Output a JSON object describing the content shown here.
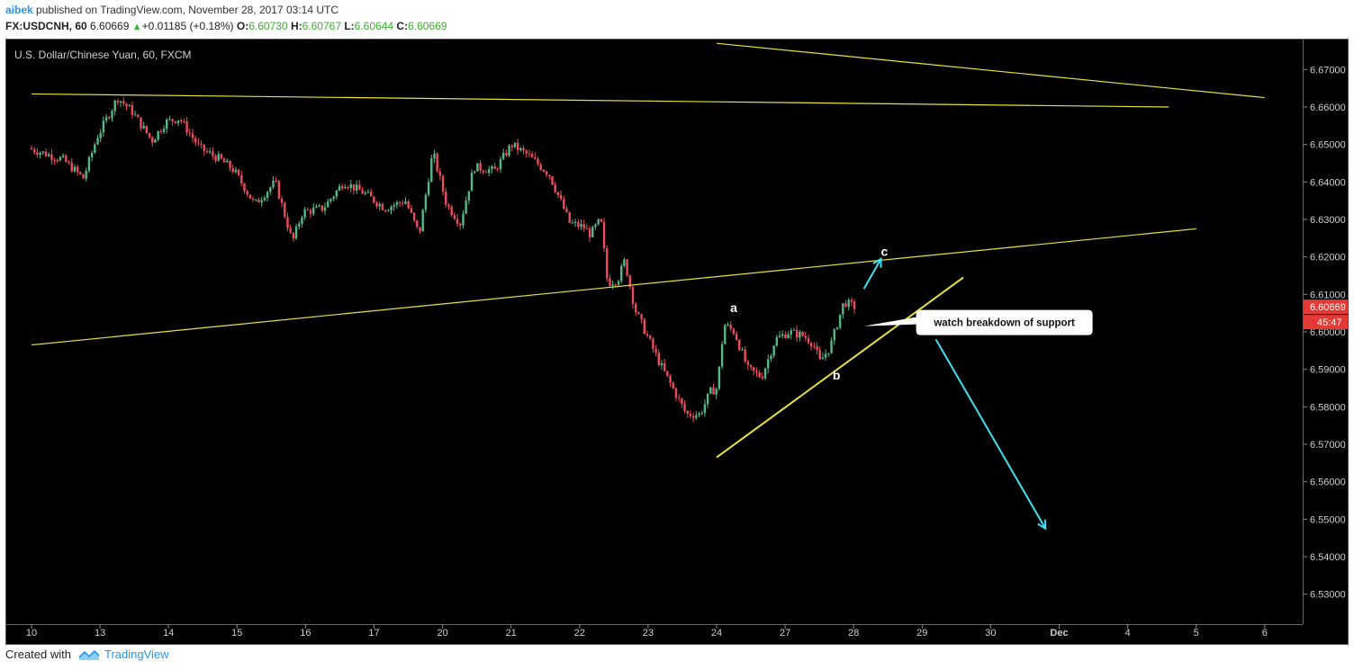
{
  "header": {
    "author": "aibek",
    "published_text": "published on TradingView.com, November 28, 2017 03:14 UTC",
    "symbol": "FX:USDCNH, 60",
    "price": "6.60669",
    "change": "+0.01185 (+0.18%)",
    "o_label": "O:",
    "o_value": "6.60730",
    "h_label": "H:",
    "h_value": "6.60767",
    "l_label": "L:",
    "l_value": "6.60644",
    "c_label": "C:",
    "c_value": "6.60669"
  },
  "footer": {
    "created_with": "Created with",
    "brand": "TradingView"
  },
  "colors": {
    "background": "#000000",
    "up_candle": "#53b987",
    "down_candle": "#eb4d5c",
    "trendline": "#e8e23a",
    "arrow": "#40e0f0",
    "price_tag": "#e53935"
  },
  "chart_data": {
    "type": "candlestick",
    "title": "U.S. Dollar/Chinese Yuan, 60, FXCM",
    "ylim": [
      6.522,
      6.678
    ],
    "y_ticks": [
      "6.67000",
      "6.66000",
      "6.65000",
      "6.64000",
      "6.63000",
      "6.62000",
      "6.61000",
      "6.60000",
      "6.59000",
      "6.58000",
      "6.57000",
      "6.56000",
      "6.55000",
      "6.54000",
      "6.53000"
    ],
    "x_ticks": [
      "10",
      "13",
      "14",
      "15",
      "16",
      "17",
      "20",
      "21",
      "22",
      "23",
      "24",
      "27",
      "28",
      "29",
      "30",
      "Dec",
      "4",
      "5",
      "6"
    ],
    "last_price": "6.60669",
    "countdown": "45:47",
    "price_path": [
      [
        0,
        6.649
      ],
      [
        0.5,
        6.646
      ],
      [
        0.8,
        6.641
      ],
      [
        1.0,
        6.652
      ],
      [
        1.3,
        6.6625
      ],
      [
        1.5,
        6.659
      ],
      [
        1.8,
        6.651
      ],
      [
        2.0,
        6.656
      ],
      [
        2.2,
        6.657
      ],
      [
        2.5,
        6.649
      ],
      [
        2.8,
        6.646
      ],
      [
        3.0,
        6.643
      ],
      [
        3.3,
        6.634
      ],
      [
        3.6,
        6.64
      ],
      [
        3.85,
        6.624
      ],
      [
        4.0,
        6.632
      ],
      [
        4.3,
        6.633
      ],
      [
        4.6,
        6.64
      ],
      [
        4.9,
        6.637
      ],
      [
        5.2,
        6.633
      ],
      [
        5.5,
        6.635
      ],
      [
        5.7,
        6.626
      ],
      [
        5.9,
        6.648
      ],
      [
        6.1,
        6.634
      ],
      [
        6.3,
        6.629
      ],
      [
        6.5,
        6.644
      ],
      [
        6.8,
        6.643
      ],
      [
        7.05,
        6.65
      ],
      [
        7.3,
        6.647
      ],
      [
        7.6,
        6.642
      ],
      [
        7.9,
        6.629
      ],
      [
        8.1,
        6.628
      ],
      [
        8.2,
        6.626
      ],
      [
        8.35,
        6.63
      ],
      [
        8.45,
        6.613
      ],
      [
        8.6,
        6.614
      ],
      [
        8.7,
        6.619
      ],
      [
        8.85,
        6.606
      ],
      [
        9.0,
        6.6
      ],
      [
        9.2,
        6.592
      ],
      [
        9.4,
        6.585
      ],
      [
        9.6,
        6.578
      ],
      [
        9.8,
        6.578
      ],
      [
        9.95,
        6.584
      ],
      [
        10.05,
        6.585
      ],
      [
        10.15,
        6.602
      ],
      [
        10.3,
        6.6
      ],
      [
        10.5,
        6.59
      ],
      [
        10.7,
        6.588
      ],
      [
        10.9,
        6.598
      ],
      [
        11.1,
        6.6
      ],
      [
        11.3,
        6.599
      ],
      [
        11.45,
        6.597
      ],
      [
        11.55,
        6.592
      ],
      [
        11.7,
        6.596
      ],
      [
        11.9,
        6.608
      ],
      [
        12.05,
        6.6067
      ]
    ],
    "trendlines": [
      {
        "from": [
          0,
          6.6635
        ],
        "to": [
          16.6,
          6.66
        ]
      },
      {
        "from": [
          10.0,
          6.677
        ],
        "to": [
          18.0,
          6.6625
        ]
      },
      {
        "from": [
          0,
          6.5965
        ],
        "to": [
          17.0,
          6.6275
        ]
      },
      {
        "from": [
          10.0,
          6.5665
        ],
        "to": [
          13.6,
          6.6145
        ]
      }
    ],
    "annotations": [
      {
        "text": "a",
        "x": 10.25,
        "y": 6.6065
      },
      {
        "text": "b",
        "x": 11.75,
        "y": 6.5885
      },
      {
        "text": "c",
        "x": 12.45,
        "y": 6.6215
      },
      {
        "text": "watch breakdown of support",
        "x": 14.2,
        "y": 6.6025,
        "callout": true
      }
    ],
    "arrows": [
      {
        "from": [
          12.15,
          6.6115
        ],
        "to": [
          12.4,
          6.6195
        ]
      },
      {
        "from": [
          13.2,
          6.598
        ],
        "to": [
          14.8,
          6.5475
        ]
      }
    ]
  }
}
